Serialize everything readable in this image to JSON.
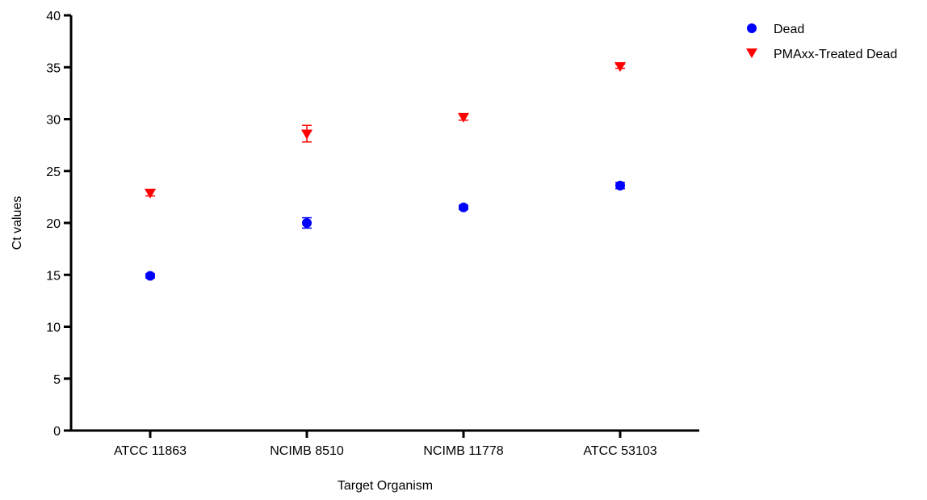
{
  "chart_data": {
    "type": "scatter",
    "title": "",
    "xlabel": "Target Organism",
    "ylabel": "Ct values",
    "categories": [
      "ATCC 11863",
      "NCIMB 8510",
      "NCIMB 11778",
      "ATCC 53103"
    ],
    "ylim": [
      0,
      40
    ],
    "yticks": [
      0,
      5,
      10,
      15,
      20,
      25,
      30,
      35,
      40
    ],
    "grid": false,
    "legend_position": "top-right",
    "series": [
      {
        "name": "Dead",
        "marker": "circle",
        "color": "#0000ff",
        "values": [
          14.9,
          20.0,
          21.5,
          23.6
        ],
        "errors": [
          0.2,
          0.5,
          0.2,
          0.3
        ]
      },
      {
        "name": "PMAxx-Treated Dead",
        "marker": "triangle-down",
        "color": "#ff0000",
        "values": [
          22.9,
          28.6,
          30.2,
          35.1
        ],
        "errors": [
          0.3,
          0.8,
          0.3,
          0.2
        ]
      }
    ]
  }
}
